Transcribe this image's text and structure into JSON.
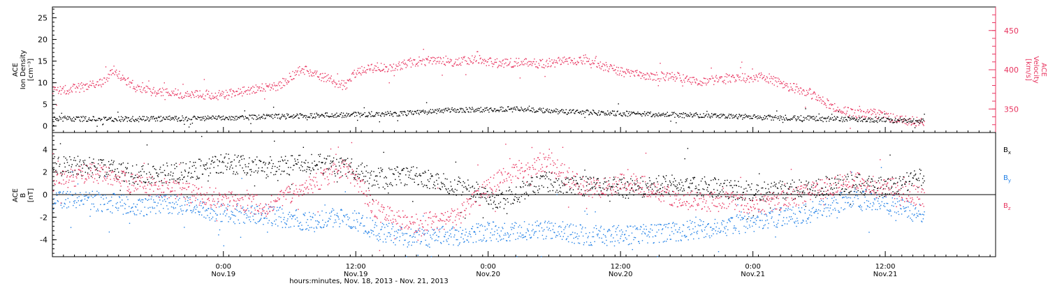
{
  "colors": {
    "black": "#000000",
    "red": "#e8345f",
    "blue": "#1f7fe6",
    "frame": "#000000"
  },
  "xaxis": {
    "label": "hours:minutes, Nov. 18, 2013 - Nov. 21, 2013",
    "start": "2013-11-18 08:30",
    "end": "2013-11-21 22:00",
    "ticks": [
      {
        "time": "2013-11-19 00:00",
        "line1": "0:00",
        "line2": "Nov.19"
      },
      {
        "time": "2013-11-19 12:00",
        "line1": "12:00",
        "line2": "Nov.19"
      },
      {
        "time": "2013-11-20 00:00",
        "line1": "0:00",
        "line2": "Nov.20"
      },
      {
        "time": "2013-11-20 12:00",
        "line1": "12:00",
        "line2": "Nov.20"
      },
      {
        "time": "2013-11-21 00:00",
        "line1": "0:00",
        "line2": "Nov.21"
      },
      {
        "time": "2013-11-21 12:00",
        "line1": "12:00",
        "line2": "Nov.21"
      }
    ]
  },
  "chart_data": [
    {
      "type": "scatter",
      "panel": "top",
      "left_axis": {
        "label_lines": [
          "ACE",
          "Ion Density",
          "[cm⁻³]"
        ],
        "ylim": [
          -1.5,
          27.5
        ],
        "ticks": [
          0,
          5,
          10,
          15,
          20,
          25
        ]
      },
      "right_axis": {
        "label_lines": [
          "ACE",
          "Velocity",
          "[km/s]"
        ],
        "ylim": [
          320,
          480
        ],
        "ticks": [
          350,
          400,
          450
        ]
      },
      "series": [
        {
          "axis": "right",
          "color": "red",
          "x": [
            "2013-11-18 08:30",
            "2013-11-18 11:00",
            "2013-11-18 13:00",
            "2013-11-18 14:00",
            "2013-11-18 16:00",
            "2013-11-18 18:00",
            "2013-11-18 20:00",
            "2013-11-19 00:00",
            "2013-11-19 02:00",
            "2013-11-19 05:00",
            "2013-11-19 07:00",
            "2013-11-19 08:00",
            "2013-11-19 09:00",
            "2013-11-19 10:00",
            "2013-11-19 11:00",
            "2013-11-19 12:00",
            "2013-11-19 13:00",
            "2013-11-19 14:00",
            "2013-11-19 15:00",
            "2013-11-19 17:00",
            "2013-11-19 19:00",
            "2013-11-19 21:00",
            "2013-11-19 23:00",
            "2013-11-20 01:00",
            "2013-11-20 03:00",
            "2013-11-20 05:00",
            "2013-11-20 07:00",
            "2013-11-20 09:00",
            "2013-11-20 11:00",
            "2013-11-20 13:00",
            "2013-11-20 15:00",
            "2013-11-20 17:00",
            "2013-11-20 19:00",
            "2013-11-20 21:00",
            "2013-11-20 23:00",
            "2013-11-21 01:00",
            "2013-11-21 03:00",
            "2013-11-21 05:00",
            "2013-11-21 07:00",
            "2013-11-21 09:00",
            "2013-11-21 11:00",
            "2013-11-21 13:00",
            "2013-11-21 15:30"
          ],
          "y": [
            373,
            378,
            384,
            400,
            378,
            372,
            370,
            368,
            374,
            380,
            402,
            396,
            392,
            385,
            380,
            398,
            402,
            404,
            403,
            410,
            413,
            411,
            414,
            408,
            410,
            408,
            412,
            414,
            402,
            395,
            392,
            392,
            385,
            388,
            390,
            392,
            380,
            372,
            355,
            345,
            345,
            338,
            333
          ]
        },
        {
          "axis": "left",
          "color": "black",
          "x": [
            "2013-11-18 08:30",
            "2013-11-18 16:00",
            "2013-11-19 00:00",
            "2013-11-19 08:00",
            "2013-11-19 16:00",
            "2013-11-19 21:00",
            "2013-11-20 02:00",
            "2013-11-20 06:00",
            "2013-11-20 12:00",
            "2013-11-20 18:00",
            "2013-11-21 00:00",
            "2013-11-21 06:00",
            "2013-11-21 12:00",
            "2013-11-21 15:30"
          ],
          "y": [
            1.8,
            1.7,
            2.0,
            2.5,
            3.0,
            3.8,
            4.0,
            3.5,
            3.0,
            2.6,
            2.2,
            1.8,
            1.5,
            1.2
          ]
        }
      ]
    },
    {
      "type": "scatter",
      "panel": "bottom",
      "left_axis": {
        "label_lines": [
          "ACE",
          "B",
          "[nT]"
        ],
        "ylim": [
          -5.5,
          5.5
        ],
        "ticks": [
          -4,
          -2,
          0,
          2,
          4
        ]
      },
      "zero_line": true,
      "series": [
        {
          "name": "B",
          "subscript": "x",
          "color": "black",
          "x": [
            "2013-11-18 08:30",
            "2013-11-18 12:00",
            "2013-11-18 16:00",
            "2013-11-18 20:00",
            "2013-11-19 00:00",
            "2013-11-19 04:00",
            "2013-11-19 08:00",
            "2013-11-19 11:00",
            "2013-11-19 14:00",
            "2013-11-19 17:00",
            "2013-11-19 21:00",
            "2013-11-20 01:00",
            "2013-11-20 05:00",
            "2013-11-20 09:00",
            "2013-11-20 13:00",
            "2013-11-20 17:00",
            "2013-11-20 21:00",
            "2013-11-21 01:00",
            "2013-11-21 05:00",
            "2013-11-21 09:00",
            "2013-11-21 12:00",
            "2013-11-21 15:30"
          ],
          "y": [
            2.6,
            2.5,
            1.8,
            2.0,
            2.8,
            2.4,
            2.8,
            2.5,
            1.5,
            1.8,
            0.8,
            -0.5,
            1.2,
            0.8,
            0.6,
            1.0,
            0.6,
            0.3,
            0.6,
            1.0,
            0.7,
            1.5
          ]
        },
        {
          "name": "B",
          "subscript": "y",
          "color": "blue",
          "x": [
            "2013-11-18 08:30",
            "2013-11-18 12:00",
            "2013-11-18 16:00",
            "2013-11-18 20:00",
            "2013-11-19 00:00",
            "2013-11-19 04:00",
            "2013-11-19 08:00",
            "2013-11-19 11:00",
            "2013-11-19 14:00",
            "2013-11-19 17:00",
            "2013-11-19 21:00",
            "2013-11-20 01:00",
            "2013-11-20 05:00",
            "2013-11-20 09:00",
            "2013-11-20 13:00",
            "2013-11-20 17:00",
            "2013-11-20 21:00",
            "2013-11-21 01:00",
            "2013-11-21 05:00",
            "2013-11-21 09:00",
            "2013-11-21 12:00",
            "2013-11-21 15:30"
          ],
          "y": [
            -0.6,
            -0.5,
            -1.0,
            -0.8,
            -1.6,
            -1.8,
            -2.4,
            -1.8,
            -3.2,
            -3.8,
            -3.6,
            -3.2,
            -3.0,
            -3.6,
            -3.6,
            -3.2,
            -2.8,
            -2.2,
            -1.6,
            -0.3,
            -0.8,
            -1.8
          ]
        },
        {
          "name": "B",
          "subscript": "z",
          "color": "red",
          "x": [
            "2013-11-18 08:30",
            "2013-11-18 12:00",
            "2013-11-18 16:00",
            "2013-11-18 20:00",
            "2013-11-19 00:00",
            "2013-11-19 04:00",
            "2013-11-19 08:00",
            "2013-11-19 11:00",
            "2013-11-19 14:00",
            "2013-11-19 17:00",
            "2013-11-19 21:00",
            "2013-11-20 01:00",
            "2013-11-20 05:00",
            "2013-11-20 09:00",
            "2013-11-20 13:00",
            "2013-11-20 17:00",
            "2013-11-20 21:00",
            "2013-11-21 01:00",
            "2013-11-21 05:00",
            "2013-11-21 09:00",
            "2013-11-21 12:00",
            "2013-11-21 15:30"
          ],
          "y": [
            1.2,
            2.0,
            1.0,
            0.4,
            -0.5,
            -1.0,
            1.0,
            2.5,
            -1.5,
            -2.5,
            -2.0,
            1.5,
            3.0,
            0.5,
            1.2,
            -0.3,
            -0.6,
            -0.8,
            0.2,
            1.3,
            0.8,
            -0.3
          ]
        }
      ]
    }
  ]
}
